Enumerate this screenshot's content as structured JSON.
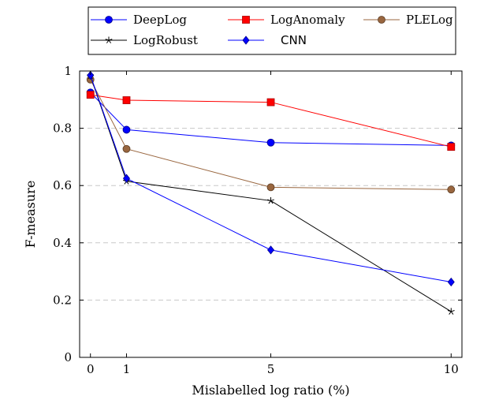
{
  "chart_data": {
    "type": "line",
    "xlabel": "Mislabelled log ratio (%)",
    "ylabel": "F-measure",
    "x": [
      0,
      1,
      5,
      10
    ],
    "xticks": [
      0,
      1,
      5,
      10
    ],
    "yticks": [
      0,
      0.2,
      0.4,
      0.6,
      0.8,
      1
    ],
    "xlim": [
      -0.3,
      10.3
    ],
    "ylim": [
      0,
      1
    ],
    "grid": "horizontal dashed",
    "legend_position": "top",
    "series": [
      {
        "name": "DeepLog",
        "color": "#0000ff",
        "marker": "circle",
        "values": [
          0.925,
          0.795,
          0.75,
          0.74
        ]
      },
      {
        "name": "LogAnomaly",
        "color": "#ff0000",
        "marker": "square",
        "values": [
          0.917,
          0.898,
          0.891,
          0.735
        ]
      },
      {
        "name": "PLELog",
        "color": "#99663f",
        "marker": "circle",
        "values": [
          0.97,
          0.728,
          0.594,
          0.586
        ]
      },
      {
        "name": "LogRobust",
        "color": "#000000",
        "marker": "star",
        "values": [
          0.983,
          0.615,
          0.547,
          0.16
        ]
      },
      {
        "name": "CNN",
        "color": "#0000ff",
        "marker": "diamond",
        "values": [
          0.985,
          0.625,
          0.375,
          0.263
        ]
      }
    ]
  }
}
